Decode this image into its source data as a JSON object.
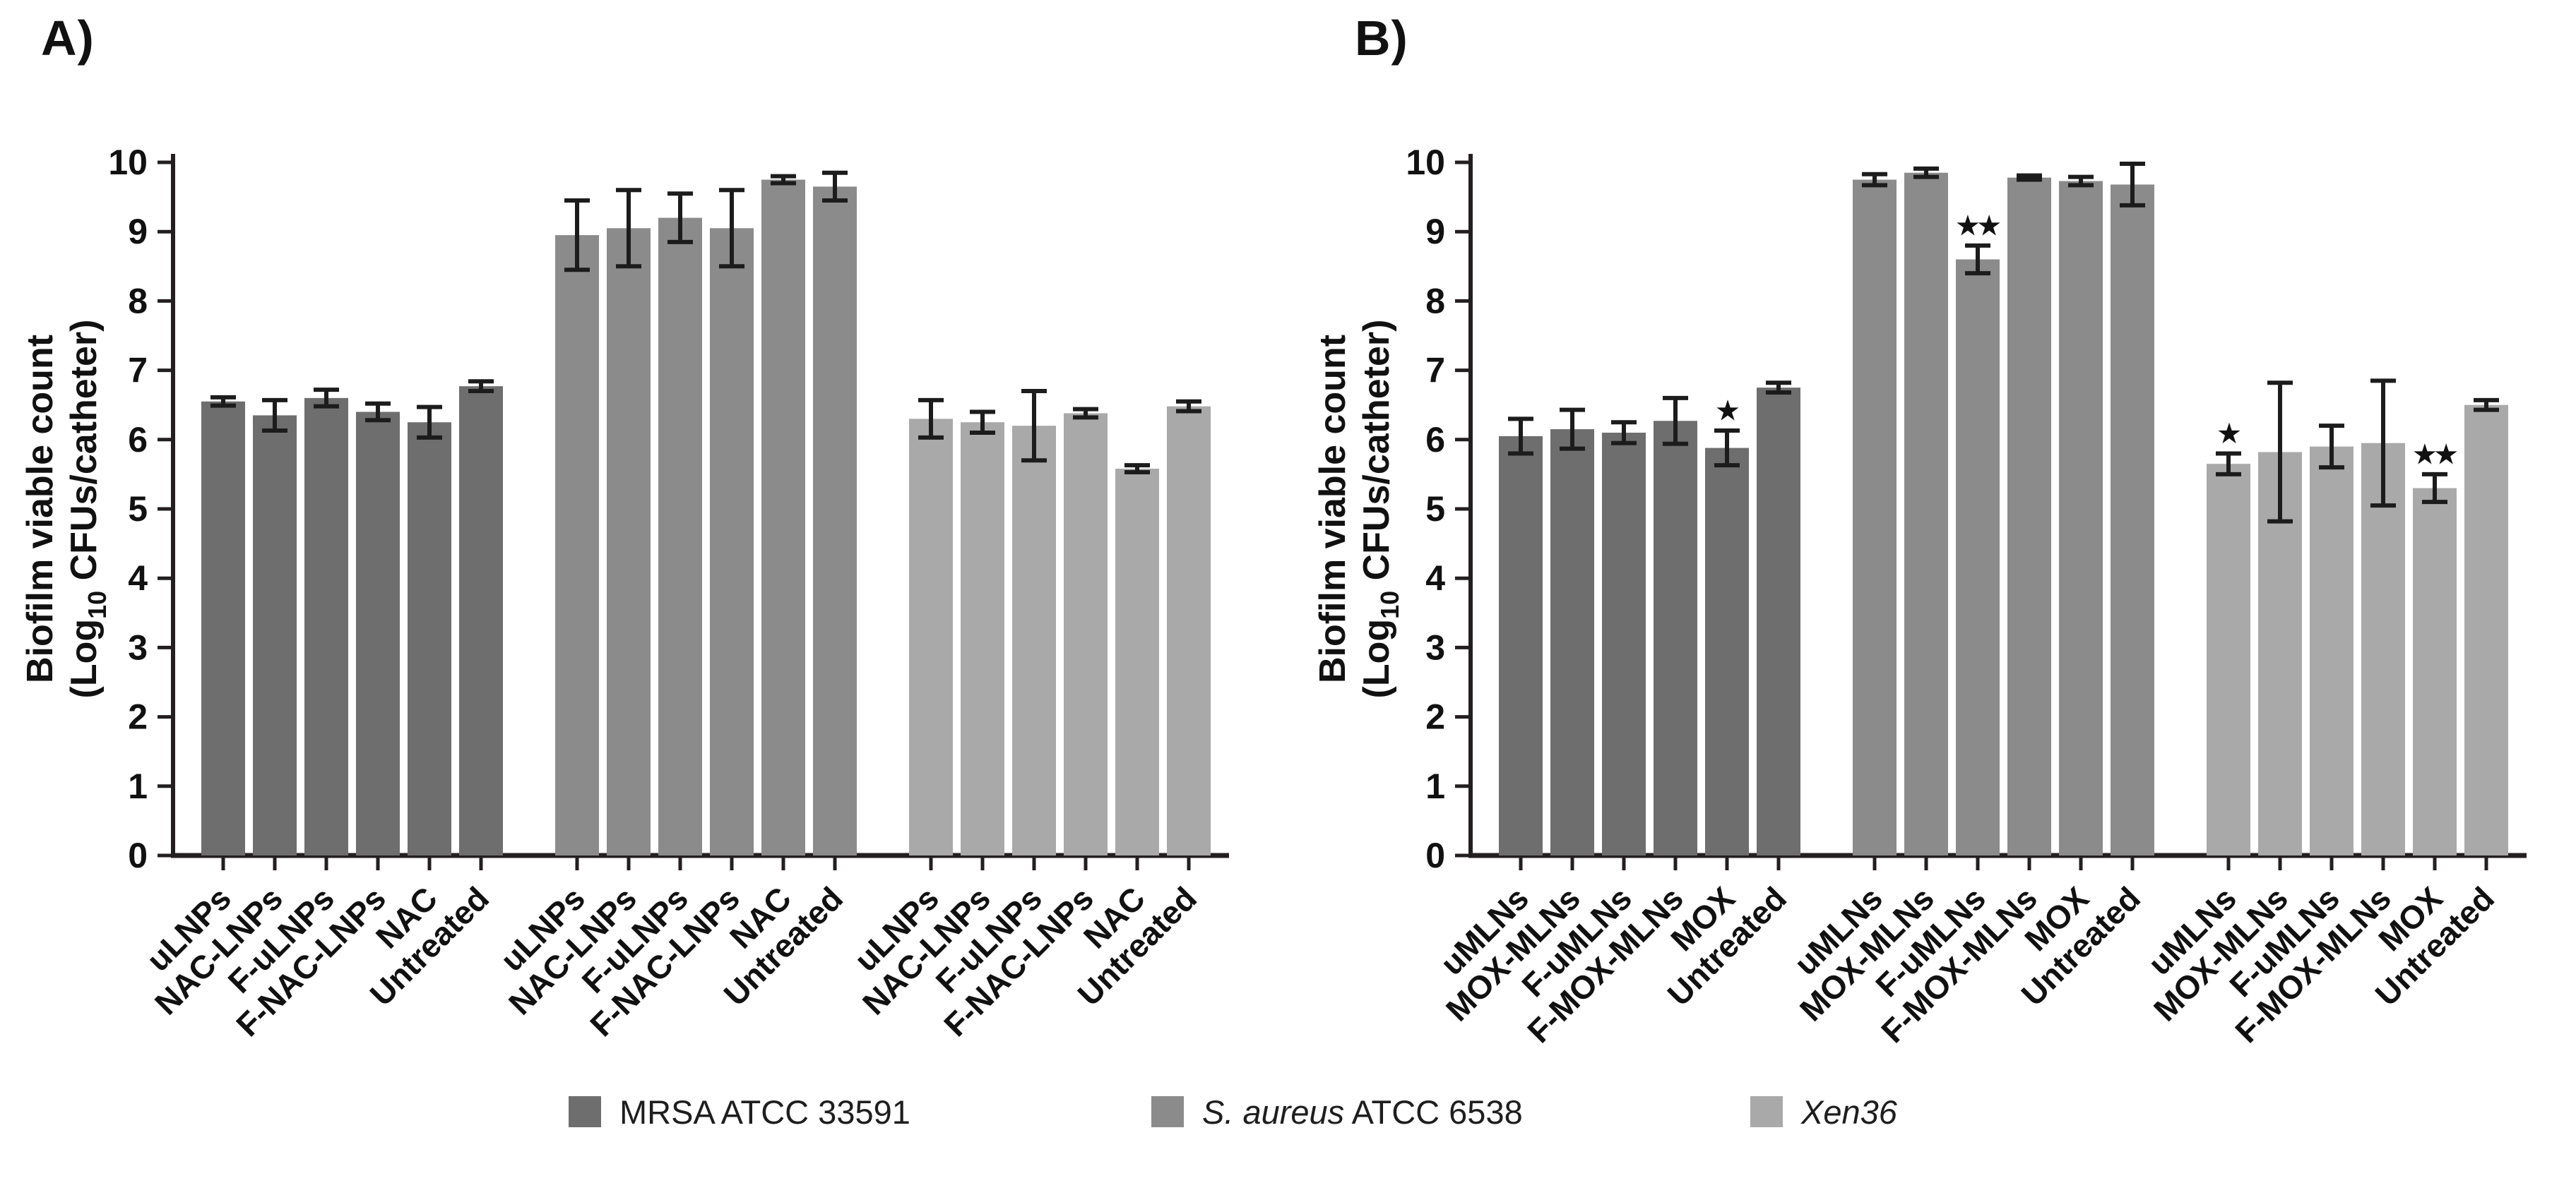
{
  "figure": {
    "background": "#ffffff"
  },
  "panels": [
    {
      "letter": "A)"
    },
    {
      "letter": "B)"
    }
  ],
  "legend": {
    "items": [
      {
        "italic": "",
        "rest": "MRSA ATCC 33591",
        "color": "#6e6e6e"
      },
      {
        "italic": "S. aureus",
        "rest": " ATCC 6538",
        "color": "#8b8b8b"
      },
      {
        "italic": "Xen36",
        "rest": "",
        "color": "#a9a9a9"
      }
    ]
  },
  "chart_data": [
    {
      "type": "bar",
      "panel_label": "A)",
      "ylabel_line1": "Biofilm viable count",
      "ylabel_line2_pre": "(Log",
      "ylabel_line2_sub": "10",
      "ylabel_line2_post": " CFUs/catheter)",
      "ylim": [
        0,
        10
      ],
      "yticks": [
        0,
        1,
        2,
        3,
        4,
        5,
        6,
        7,
        8,
        9,
        10
      ],
      "grid": false,
      "legend_position": "bottom",
      "axis_color": "#231f20",
      "error_bar_color": "#1c1c1c",
      "categories": [
        "uLNPs",
        "NAC-LNPs",
        "F-uLNPs",
        "F-NAC-LNPs",
        "NAC",
        "Untreated"
      ],
      "series": [
        {
          "name": "MRSA ATCC 33591",
          "color": "#6e6e6e",
          "values": [
            6.55,
            6.35,
            6.6,
            6.4,
            6.25,
            6.77
          ],
          "errors": [
            0.06,
            0.22,
            0.12,
            0.12,
            0.22,
            0.07
          ],
          "annotations": [
            "",
            "",
            "",
            "",
            "",
            ""
          ]
        },
        {
          "name": "S. aureus ATCC 6538",
          "color": "#8b8b8b",
          "values": [
            8.95,
            9.05,
            9.2,
            9.05,
            9.75,
            9.65
          ],
          "errors": [
            0.5,
            0.55,
            0.35,
            0.55,
            0.05,
            0.2
          ],
          "annotations": [
            "",
            "",
            "",
            "",
            "",
            ""
          ]
        },
        {
          "name": "Xen36",
          "color": "#a9a9a9",
          "values": [
            6.3,
            6.25,
            6.2,
            6.38,
            5.58,
            6.48
          ],
          "errors": [
            0.27,
            0.15,
            0.5,
            0.06,
            0.05,
            0.07
          ],
          "annotations": [
            "",
            "",
            "",
            "",
            "",
            ""
          ]
        }
      ]
    },
    {
      "type": "bar",
      "panel_label": "B)",
      "ylabel_line1": "Biofilm viable count",
      "ylabel_line2_pre": "(Log",
      "ylabel_line2_sub": "10",
      "ylabel_line2_post": " CFUs/catheter)",
      "ylim": [
        0,
        10
      ],
      "yticks": [
        0,
        1,
        2,
        3,
        4,
        5,
        6,
        7,
        8,
        9,
        10
      ],
      "grid": false,
      "legend_position": "bottom",
      "axis_color": "#231f20",
      "error_bar_color": "#1c1c1c",
      "categories": [
        "uMLNs",
        "MOX-MLNs",
        "F-uMLNs",
        "F-MOX-MLNs",
        "MOX",
        "Untreated"
      ],
      "series": [
        {
          "name": "MRSA ATCC 33591",
          "color": "#6e6e6e",
          "values": [
            6.05,
            6.15,
            6.1,
            6.27,
            5.88,
            6.75
          ],
          "errors": [
            0.25,
            0.28,
            0.15,
            0.33,
            0.25,
            0.07
          ],
          "annotations": [
            "",
            "",
            "",
            "",
            "*",
            ""
          ]
        },
        {
          "name": "S. aureus ATCC 6538",
          "color": "#8b8b8b",
          "values": [
            9.75,
            9.85,
            8.6,
            9.78,
            9.73,
            9.68
          ],
          "errors": [
            0.08,
            0.06,
            0.2,
            0.03,
            0.06,
            0.3
          ],
          "annotations": [
            "",
            "",
            "**",
            "",
            "",
            ""
          ]
        },
        {
          "name": "Xen36",
          "color": "#a9a9a9",
          "values": [
            5.65,
            5.82,
            5.9,
            5.95,
            5.3,
            6.5
          ],
          "errors": [
            0.15,
            1.0,
            0.3,
            0.9,
            0.2,
            0.07
          ],
          "annotations": [
            "*",
            "",
            "",
            "",
            "**",
            ""
          ]
        }
      ]
    }
  ]
}
